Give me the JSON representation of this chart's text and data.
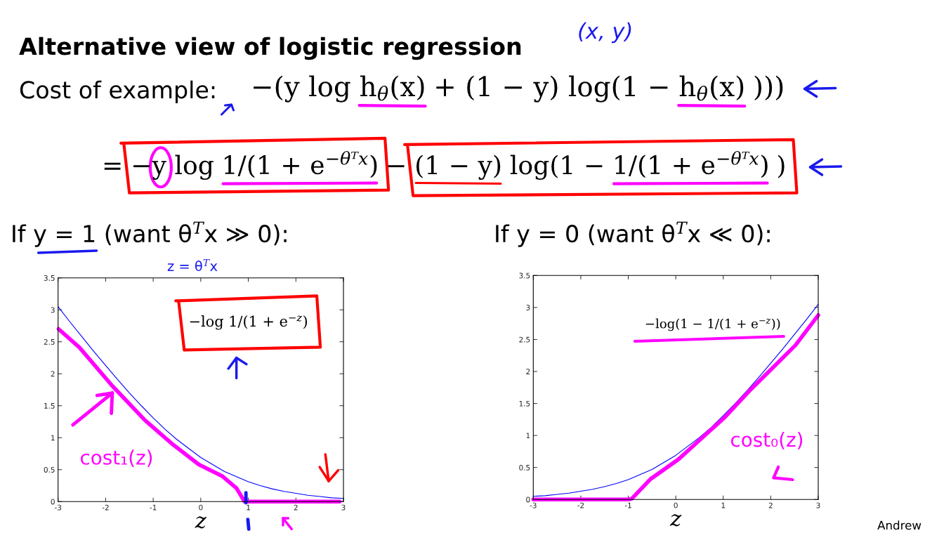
{
  "chart_data": [
    {
      "type": "line",
      "title": "Alternative view of logistic regression",
      "subtitle": "If y = 1 (want θ$^{T}$x ≫ 0):",
      "annotations": [
        "Cost of example:",
        "−(y log",
        "h$_{θ}$(x)",
        "+ (1 − y) log(1 −",
        "h$_{θ}$(x)",
        ")))",
        "=",
        "−y log",
        "1/(1 + e$^{−θᵀx}$)",
        "−",
        "(1 − y)",
        "log(1 −",
        "1/(1 + e$^{−θᵀx}$)",
        ")",
        "(x, y)",
        "z = θ$^{T}$x",
        "−log 1/(1 + e$^{−z}$)"
      ],
      "xlabel": "z",
      "xlim": [
        -3,
        3
      ],
      "xticks": [
        -3,
        -2,
        -1,
        0,
        1,
        2,
        3
      ],
      "ylim": [
        0,
        3.5
      ],
      "yticks": [
        0,
        0.5,
        1,
        1.5,
        2,
        2.5,
        3,
        3.5
      ],
      "grid": false,
      "legend": false,
      "series": [
        {
          "color": "#0000ff",
          "x": [
            -3,
            -2.75,
            -2.5,
            -2.25,
            -2,
            -1.75,
            -1.5,
            -1.25,
            -1,
            -0.75,
            -0.5,
            -0.25,
            0,
            0.25,
            0.5,
            0.75,
            1,
            1.25,
            1.5,
            1.75,
            2,
            2.25,
            2.5,
            2.75,
            3
          ],
          "values": [
            3.05,
            2.81,
            2.58,
            2.35,
            2.13,
            1.91,
            1.7,
            1.5,
            1.31,
            1.13,
            0.97,
            0.83,
            0.69,
            0.58,
            0.47,
            0.39,
            0.31,
            0.25,
            0.2,
            0.16,
            0.13,
            0.1,
            0.08,
            0.06,
            0.05
          ]
        },
        {
          "name": "cost₁(z)",
          "color": "#ff00ff",
          "x": [
            -2.99,
            -2.55,
            -1.86,
            -1.17,
            -0.58,
            -0.04,
            0.45,
            0.75,
            0.92,
            2.92
          ],
          "values": [
            2.7,
            2.41,
            1.81,
            1.27,
            0.89,
            0.58,
            0.4,
            0.21,
            0,
            0
          ]
        }
      ]
    },
    {
      "type": "line",
      "title": "If y = 0 (want θ$^{T}$x ≪ 0):",
      "annotations": [
        "Andrew"
      ],
      "xlabel": "z",
      "xlim": [
        -3,
        3
      ],
      "xticks": [
        -3,
        -2,
        -1,
        0,
        1,
        2,
        3
      ],
      "ylim": [
        0,
        3.5
      ],
      "yticks": [
        0,
        0.5,
        1,
        1.5,
        2,
        2.5,
        3,
        3.5
      ],
      "grid": false,
      "legend": false,
      "series": [
        {
          "name": "−log(1 − 1/(1 + e$^{−z}$))",
          "color": "#0000ff",
          "x": [
            -3,
            -2.75,
            -2.5,
            -2.25,
            -2,
            -1.75,
            -1.5,
            -1.25,
            -1,
            -0.75,
            -0.5,
            -0.25,
            0,
            0.25,
            0.5,
            0.75,
            1,
            1.25,
            1.5,
            1.75,
            2,
            2.25,
            2.5,
            2.75,
            3
          ],
          "values": [
            0.05,
            0.06,
            0.08,
            0.1,
            0.13,
            0.16,
            0.2,
            0.25,
            0.31,
            0.39,
            0.47,
            0.58,
            0.69,
            0.83,
            0.97,
            1.13,
            1.31,
            1.5,
            1.7,
            1.91,
            2.13,
            2.35,
            2.58,
            2.81,
            3.05
          ]
        },
        {
          "name": "cost₀(z)",
          "color": "#ff00ff",
          "x": [
            -3,
            -1.52,
            -1.0,
            -0.93,
            -0.53,
            0.06,
            0.55,
            1.04,
            1.54,
            2.03,
            2.52,
            3.0
          ],
          "values": [
            0,
            0,
            0,
            0.01,
            0.32,
            0.63,
            0.96,
            1.29,
            1.69,
            2.05,
            2.41,
            2.88
          ]
        }
      ]
    }
  ]
}
